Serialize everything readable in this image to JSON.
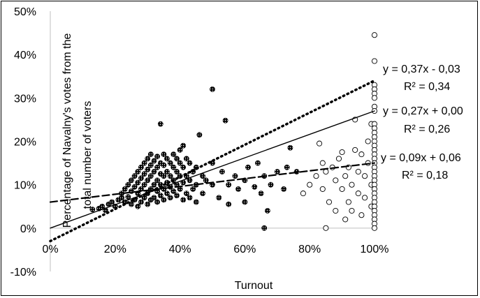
{
  "chart_data": {
    "type": "scatter",
    "xlabel": "Turnout",
    "ylabel": "Percentage of Navalny's votes from the total number of voters",
    "xlim": [
      0,
      1
    ],
    "ylim": [
      -0.1,
      0.5
    ],
    "x_ticks": [
      "0%",
      "20%",
      "40%",
      "60%",
      "80%",
      "100%"
    ],
    "y_ticks": [
      "-10%",
      "0%",
      "10%",
      "20%",
      "30%",
      "40%",
      "50%"
    ],
    "grid": false,
    "series": [
      {
        "marker": "dense-filled",
        "points": [
          [
            0.13,
            0.043
          ],
          [
            0.15,
            0.045
          ],
          [
            0.16,
            0.05
          ],
          [
            0.17,
            0.041
          ],
          [
            0.18,
            0.055
          ],
          [
            0.19,
            0.06
          ],
          [
            0.2,
            0.05
          ],
          [
            0.21,
            0.065
          ],
          [
            0.22,
            0.07
          ],
          [
            0.22,
            0.08
          ],
          [
            0.23,
            0.06
          ],
          [
            0.23,
            0.09
          ],
          [
            0.24,
            0.072
          ],
          [
            0.24,
            0.1
          ],
          [
            0.25,
            0.055
          ],
          [
            0.25,
            0.085
          ],
          [
            0.25,
            0.11
          ],
          [
            0.26,
            0.065
          ],
          [
            0.26,
            0.095
          ],
          [
            0.26,
            0.12
          ],
          [
            0.27,
            0.05
          ],
          [
            0.27,
            0.08
          ],
          [
            0.27,
            0.105
          ],
          [
            0.27,
            0.13
          ],
          [
            0.28,
            0.06
          ],
          [
            0.28,
            0.09
          ],
          [
            0.28,
            0.115
          ],
          [
            0.28,
            0.14
          ],
          [
            0.29,
            0.07
          ],
          [
            0.29,
            0.1
          ],
          [
            0.29,
            0.125
          ],
          [
            0.29,
            0.15
          ],
          [
            0.3,
            0.055
          ],
          [
            0.3,
            0.08
          ],
          [
            0.3,
            0.11
          ],
          [
            0.3,
            0.135
          ],
          [
            0.3,
            0.16
          ],
          [
            0.31,
            0.065
          ],
          [
            0.31,
            0.09
          ],
          [
            0.31,
            0.12
          ],
          [
            0.31,
            0.145
          ],
          [
            0.31,
            0.17
          ],
          [
            0.32,
            0.07
          ],
          [
            0.32,
            0.1
          ],
          [
            0.32,
            0.13
          ],
          [
            0.32,
            0.155
          ],
          [
            0.33,
            0.06
          ],
          [
            0.33,
            0.085
          ],
          [
            0.33,
            0.11
          ],
          [
            0.33,
            0.14
          ],
          [
            0.33,
            0.165
          ],
          [
            0.34,
            0.075
          ],
          [
            0.34,
            0.1
          ],
          [
            0.34,
            0.125
          ],
          [
            0.34,
            0.15
          ],
          [
            0.34,
            0.24
          ],
          [
            0.35,
            0.065
          ],
          [
            0.35,
            0.09
          ],
          [
            0.35,
            0.12
          ],
          [
            0.35,
            0.145
          ],
          [
            0.35,
            0.17
          ],
          [
            0.36,
            0.08
          ],
          [
            0.36,
            0.105
          ],
          [
            0.36,
            0.13
          ],
          [
            0.36,
            0.16
          ],
          [
            0.37,
            0.07
          ],
          [
            0.37,
            0.095
          ],
          [
            0.37,
            0.12
          ],
          [
            0.37,
            0.15
          ],
          [
            0.38,
            0.085
          ],
          [
            0.38,
            0.11
          ],
          [
            0.38,
            0.14
          ],
          [
            0.38,
            0.17
          ],
          [
            0.39,
            0.075
          ],
          [
            0.39,
            0.1
          ],
          [
            0.39,
            0.13
          ],
          [
            0.39,
            0.16
          ],
          [
            0.4,
            0.09
          ],
          [
            0.4,
            0.12
          ],
          [
            0.4,
            0.15
          ],
          [
            0.4,
            0.18
          ],
          [
            0.41,
            0.065
          ],
          [
            0.41,
            0.105
          ],
          [
            0.41,
            0.14
          ],
          [
            0.41,
            0.19
          ],
          [
            0.42,
            0.08
          ],
          [
            0.42,
            0.12
          ],
          [
            0.42,
            0.16
          ],
          [
            0.43,
            0.07
          ],
          [
            0.43,
            0.11
          ],
          [
            0.43,
            0.15
          ],
          [
            0.44,
            0.09
          ],
          [
            0.44,
            0.13
          ],
          [
            0.45,
            0.06
          ],
          [
            0.45,
            0.1
          ],
          [
            0.45,
            0.14
          ],
          [
            0.46,
            0.215
          ],
          [
            0.47,
            0.08
          ],
          [
            0.47,
            0.12
          ],
          [
            0.48,
            0.11
          ],
          [
            0.5,
            0.1
          ],
          [
            0.5,
            0.15
          ],
          [
            0.5,
            0.32
          ],
          [
            0.52,
            0.07
          ],
          [
            0.53,
            0.13
          ],
          [
            0.54,
            0.248
          ],
          [
            0.55,
            0.1
          ],
          [
            0.55,
            0.055
          ],
          [
            0.57,
            0.12
          ],
          [
            0.58,
            0.09
          ],
          [
            0.6,
            0.11
          ],
          [
            0.6,
            0.06
          ],
          [
            0.61,
            0.14
          ],
          [
            0.63,
            0.095
          ],
          [
            0.64,
            0.15
          ],
          [
            0.65,
            0.08
          ],
          [
            0.66,
            0.12
          ],
          [
            0.67,
            0.04
          ],
          [
            0.66,
            0.0
          ],
          [
            0.68,
            0.1
          ],
          [
            0.7,
            0.13
          ],
          [
            0.72,
            0.09
          ],
          [
            0.73,
            0.14
          ],
          [
            0.74,
            0.185
          ],
          [
            0.76,
            0.13
          ]
        ]
      },
      {
        "marker": "open-circle",
        "points": [
          [
            0.78,
            0.08
          ],
          [
            0.8,
            0.1
          ],
          [
            0.82,
            0.12
          ],
          [
            0.83,
            0.195
          ],
          [
            0.84,
            0.15
          ],
          [
            0.84,
            0.09
          ],
          [
            0.85,
            0.13
          ],
          [
            0.85,
            0.0
          ],
          [
            0.86,
            0.06
          ],
          [
            0.87,
            0.14
          ],
          [
            0.88,
            0.11
          ],
          [
            0.88,
            0.04
          ],
          [
            0.89,
            0.16
          ],
          [
            0.9,
            0.09
          ],
          [
            0.9,
            0.175
          ],
          [
            0.91,
            0.12
          ],
          [
            0.91,
            0.02
          ],
          [
            0.92,
            0.06
          ],
          [
            0.92,
            0.14
          ],
          [
            0.93,
            0.1
          ],
          [
            0.93,
            0.04
          ],
          [
            0.94,
            0.18
          ],
          [
            0.94,
            0.25
          ],
          [
            0.95,
            0.08
          ],
          [
            0.95,
            0.13
          ],
          [
            0.96,
            0.03
          ],
          [
            0.96,
            0.17
          ],
          [
            0.97,
            0.12
          ],
          [
            0.97,
            0.07
          ],
          [
            0.98,
            0.2
          ],
          [
            0.98,
            0.15
          ],
          [
            0.99,
            0.1
          ],
          [
            0.99,
            0.05
          ],
          [
            0.99,
            0.24
          ],
          [
            1.0,
            0.445
          ],
          [
            1.0,
            0.385
          ],
          [
            1.0,
            0.33
          ],
          [
            1.0,
            0.32
          ],
          [
            1.0,
            0.31
          ],
          [
            1.0,
            0.3
          ],
          [
            1.0,
            0.28
          ],
          [
            1.0,
            0.27
          ],
          [
            1.0,
            0.24
          ],
          [
            1.0,
            0.23
          ],
          [
            1.0,
            0.22
          ],
          [
            1.0,
            0.21
          ],
          [
            1.0,
            0.2
          ],
          [
            1.0,
            0.19
          ],
          [
            1.0,
            0.18
          ],
          [
            1.0,
            0.17
          ],
          [
            1.0,
            0.16
          ],
          [
            1.0,
            0.15
          ],
          [
            1.0,
            0.14
          ],
          [
            1.0,
            0.13
          ],
          [
            1.0,
            0.12
          ],
          [
            1.0,
            0.11
          ],
          [
            1.0,
            0.1
          ],
          [
            1.0,
            0.09
          ],
          [
            1.0,
            0.08
          ],
          [
            1.0,
            0.07
          ],
          [
            1.0,
            0.06
          ],
          [
            1.0,
            0.05
          ],
          [
            1.0,
            0.04
          ],
          [
            1.0,
            0.03
          ],
          [
            1.0,
            0.02
          ],
          [
            1.0,
            0.01
          ],
          [
            1.0,
            0.0
          ]
        ]
      }
    ],
    "trendlines": [
      {
        "style": "dotted",
        "slope": 0.37,
        "intercept": -0.03,
        "x_range": [
          0,
          1
        ],
        "equation": "y = 0,37x - 0,03",
        "r2": "R² = 0,34"
      },
      {
        "style": "solid",
        "slope": 0.27,
        "intercept": 0.0,
        "x_range": [
          0,
          1
        ],
        "equation": "y = 0,27x + 0,00",
        "r2": "R² = 0,26"
      },
      {
        "style": "dashed",
        "slope": 0.09,
        "intercept": 0.06,
        "x_range": [
          0,
          1
        ],
        "equation": "y = 0,09x + 0,06",
        "r2": "R² = 0,18"
      }
    ]
  }
}
